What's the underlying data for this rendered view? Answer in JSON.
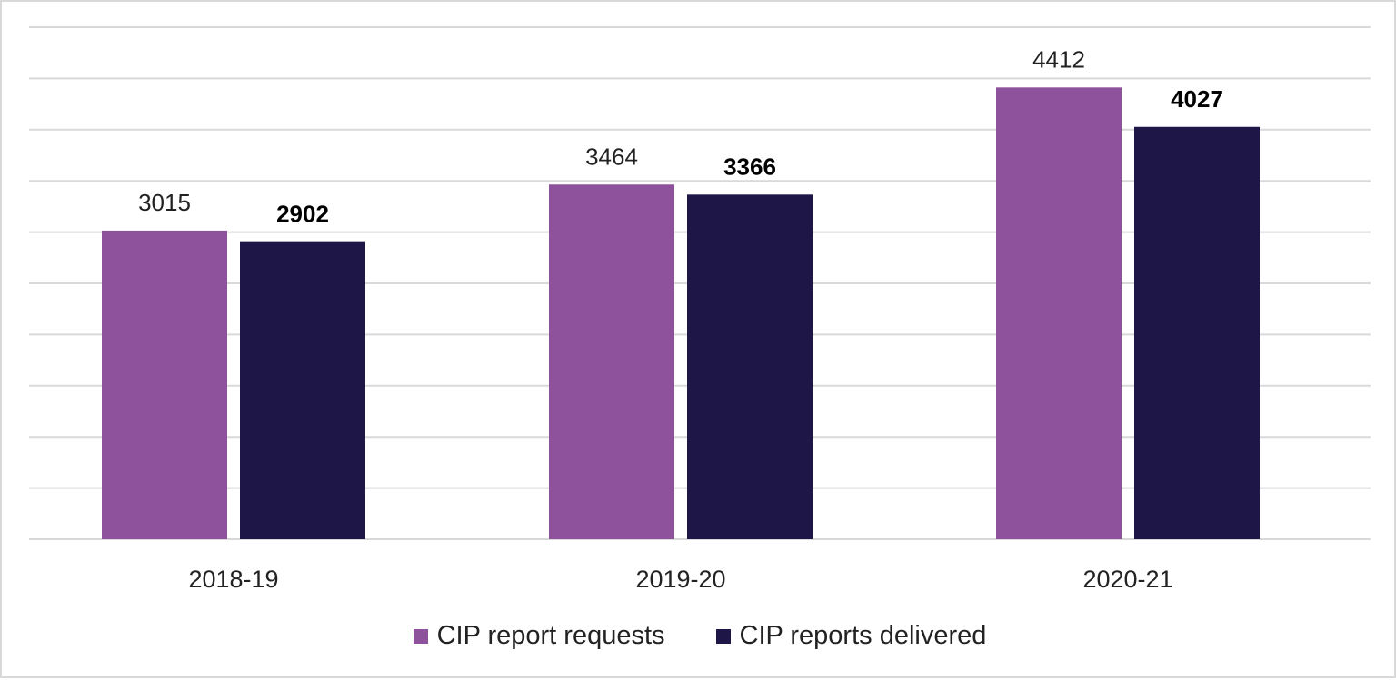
{
  "chart_data": {
    "type": "bar",
    "categories": [
      "2018-19",
      "2019-20",
      "2020-21"
    ],
    "series": [
      {
        "name": "CIP report requests",
        "values": [
          3015,
          3464,
          4412
        ],
        "color": "#8e529c"
      },
      {
        "name": "CIP reports delivered",
        "values": [
          2902,
          3366,
          4027
        ],
        "color": "#1e1646"
      }
    ],
    "ylim": [
      0,
      5000
    ],
    "ytick_step": 500,
    "grid": true,
    "y_axis_labels_shown": false,
    "data_labels": true,
    "legend_position": "bottom"
  }
}
